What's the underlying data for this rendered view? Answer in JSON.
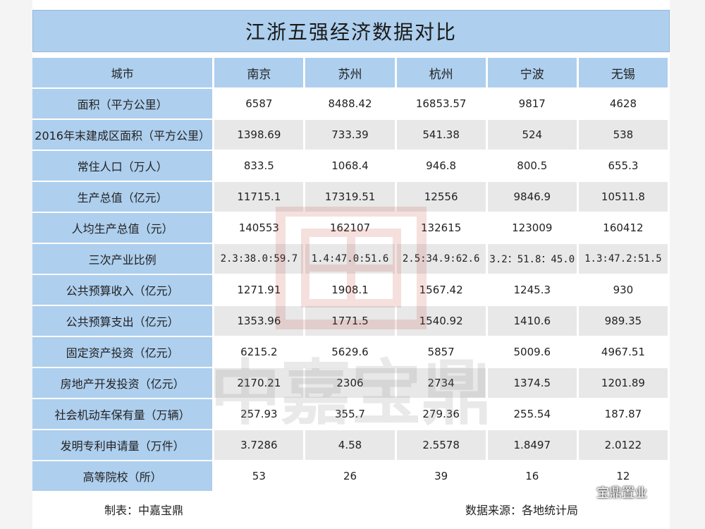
{
  "title": "江浙五强经济数据对比",
  "header": {
    "row_label": "城市",
    "cities": [
      "南京",
      "苏州",
      "杭州",
      "宁波",
      "无锡"
    ]
  },
  "rows": [
    {
      "label": "面积（平方公里）",
      "values": [
        "6587",
        "8488.42",
        "16853.57",
        "9817",
        "4628"
      ]
    },
    {
      "label": "2016年末建成区面积（平方公里）",
      "values": [
        "1398.69",
        "733.39",
        "541.38",
        "524",
        "538"
      ]
    },
    {
      "label": "常住人口（万人）",
      "values": [
        "833.5",
        "1068.4",
        "946.8",
        "800.5",
        "655.3"
      ]
    },
    {
      "label": "生产总值（亿元）",
      "values": [
        "11715.1",
        "17319.51",
        "12556",
        "9846.9",
        "10511.8"
      ]
    },
    {
      "label": "人均生产总值（元）",
      "values": [
        "140553",
        "162107",
        "132615",
        "123009",
        "160412"
      ]
    },
    {
      "label": "三次产业比例",
      "values": [
        "2.3:38.0:59.7",
        "1.4:47.0:51.6",
        "2.5:34.9:62.6",
        "3.2：51.8：45.0",
        "1.3:47.2:51.5"
      ]
    },
    {
      "label": "公共预算收入（亿元）",
      "values": [
        "1271.91",
        "1908.1",
        "1567.42",
        "1245.3",
        "930"
      ]
    },
    {
      "label": "公共预算支出（亿元）",
      "values": [
        "1353.96",
        "1771.5",
        "1540.92",
        "1410.6",
        "989.35"
      ]
    },
    {
      "label": "固定资产投资（亿元）",
      "values": [
        "6215.2",
        "5629.6",
        "5857",
        "5009.6",
        "4967.51"
      ]
    },
    {
      "label": "房地产开发投资（亿元）",
      "values": [
        "2170.21",
        "2306",
        "2734",
        "1374.5",
        "1201.89"
      ]
    },
    {
      "label": "社会机动车保有量（万辆）",
      "values": [
        "257.93",
        "355.7",
        "279.36",
        "255.54",
        "187.87"
      ]
    },
    {
      "label": "发明专利申请量（万件）",
      "values": [
        "3.7286",
        "4.58",
        "2.5578",
        "1.8497",
        "2.0122"
      ]
    },
    {
      "label": "高等院校（所）",
      "values": [
        "53",
        "26",
        "39",
        "16",
        "12"
      ]
    }
  ],
  "footer": {
    "maker": "制表：中嘉宝鼎",
    "source": "数据来源：各地统计局"
  },
  "watermark": {
    "text": "中嘉宝鼎",
    "seal_color": "#c0392b"
  },
  "brand": {
    "name": "宝鼎置业",
    "icon": "wechat-icon"
  },
  "colors": {
    "header_bg": "#aecfee",
    "row_alt_bg": "#e8e8e8"
  }
}
